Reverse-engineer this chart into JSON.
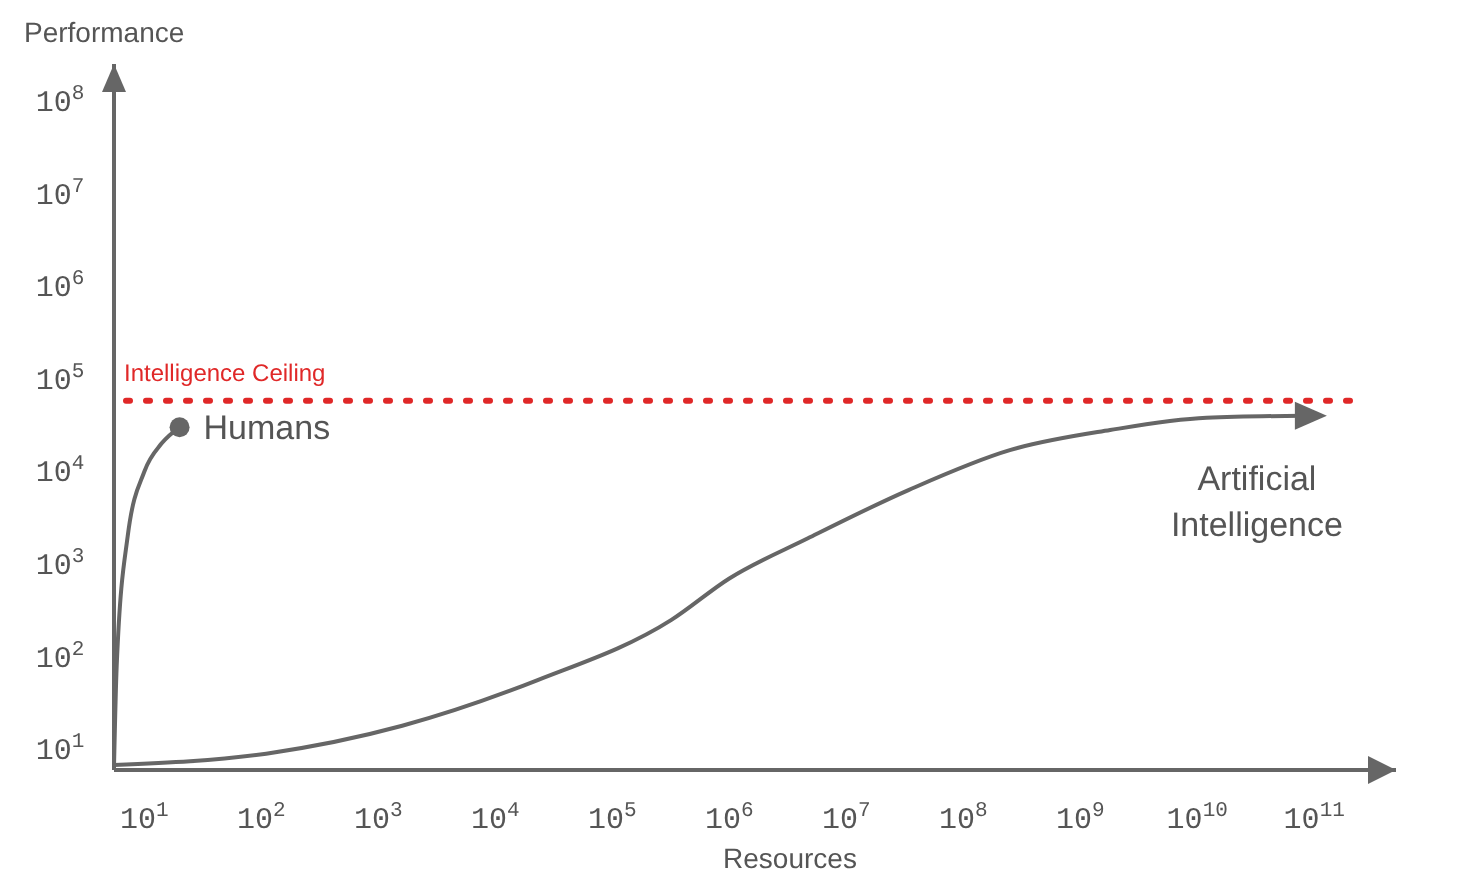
{
  "chart_data": {
    "type": "line",
    "xlabel": "Resources",
    "ylabel": "Performance",
    "log": "xy",
    "grid": false,
    "marker": "none",
    "line_style": "solid",
    "xlim": [
      5.5,
      500000000000
    ],
    "ylim": [
      6,
      250000000
    ],
    "xticks": [
      {
        "value": 10,
        "label": "10$^{1}$"
      },
      {
        "value": 100,
        "label": "10$^{2}$"
      },
      {
        "value": 1000,
        "label": "10$^{3}$"
      },
      {
        "value": 10000,
        "label": "10$^{4}$"
      },
      {
        "value": 100000,
        "label": "10$^{5}$"
      },
      {
        "value": 1000000,
        "label": "10$^{6}$"
      },
      {
        "value": 10000000,
        "label": "10$^{7}$"
      },
      {
        "value": 100000000,
        "label": "10$^{8}$"
      },
      {
        "value": 1000000000,
        "label": "10$^{9}$"
      },
      {
        "value": 10000000000,
        "label": "10$^{10}$"
      },
      {
        "value": 100000000000,
        "label": "10$^{11}$"
      }
    ],
    "yticks": [
      {
        "value": 10,
        "label": "10$^{1}$"
      },
      {
        "value": 100,
        "label": "10$^{2}$"
      },
      {
        "value": 1000,
        "label": "10$^{3}$"
      },
      {
        "value": 10000,
        "label": "10$^{4}$"
      },
      {
        "value": 100000,
        "label": "10$^{5}$"
      },
      {
        "value": 1000000,
        "label": "10$^{6}$"
      },
      {
        "value": 10000000,
        "label": "10$^{7}$"
      },
      {
        "value": 100000000,
        "label": "10$^{8}$"
      }
    ],
    "ref_lines": [
      {
        "axis": "y",
        "value": 58000,
        "label": "Intelligence Ceiling",
        "color": "#e02828",
        "line_style": "dotted"
      }
    ],
    "series": [
      {
        "name": "Humans",
        "color": "#666666",
        "x": [
          5.5,
          5.8,
          7.2,
          10,
          14,
          20
        ],
        "values": [
          6.5,
          80,
          2000,
          10000,
          20000,
          30000
        ]
      },
      {
        "name": "Artificial Intelligence",
        "color": "#666666",
        "x": [
          5.5,
          110,
          1600,
          23000,
          320000,
          1000000,
          4700000,
          34000000,
          250000000,
          1800000000,
          12000000000,
          80000000000
        ],
        "values": [
          6.8,
          9,
          18,
          56,
          250,
          700,
          1900,
          6300,
          17000,
          28000,
          38000,
          40000
        ]
      }
    ]
  }
}
